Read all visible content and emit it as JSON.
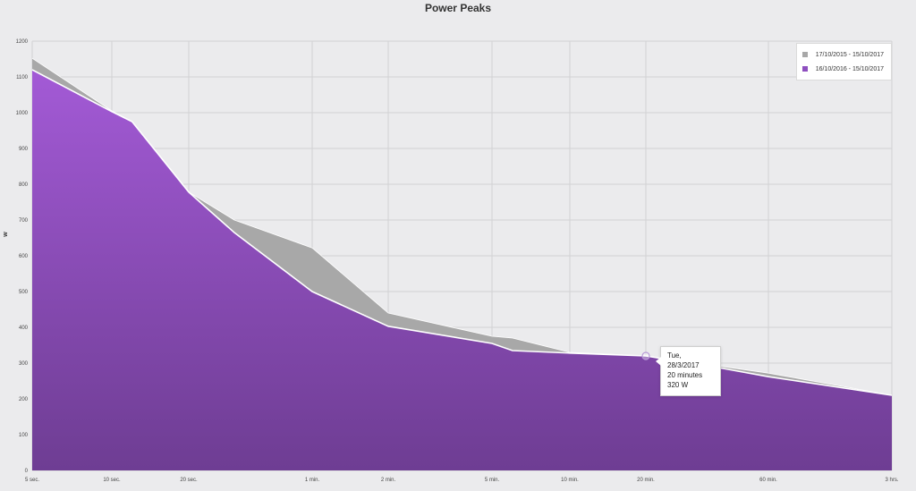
{
  "chart_data": {
    "type": "area",
    "title": "Power Peaks",
    "ylabel": "w",
    "xlabel": "",
    "ylim": [
      0,
      1200
    ],
    "y_ticks": [
      0,
      100,
      200,
      300,
      400,
      500,
      600,
      700,
      800,
      900,
      1000,
      1100,
      1200
    ],
    "x_tick_labels": [
      "5 sec.",
      "10 sec.",
      "20 sec.",
      "1 min.",
      "2 min.",
      "5 min.",
      "10 min.",
      "20 min.",
      "60 min.",
      "3 hrs."
    ],
    "x_tick_seconds": [
      5,
      10,
      20,
      60,
      120,
      300,
      600,
      1200,
      3600,
      10800
    ],
    "x_scale": "log",
    "grid": true,
    "legend_position": "top-right",
    "series": [
      {
        "name": "17/10/2015 - 15/10/2017",
        "color": "#a8a8a8",
        "x_seconds": [
          5,
          10,
          12,
          20,
          30,
          60,
          120,
          300,
          360,
          600,
          1200,
          2400,
          3600,
          10800
        ],
        "values": [
          1152,
          1005,
          975,
          778,
          700,
          622,
          440,
          375,
          370,
          330,
          320,
          290,
          272,
          210
        ]
      },
      {
        "name": "16/10/2016 - 15/10/2017",
        "color": "#8e4fbf",
        "x_seconds": [
          5,
          10,
          12,
          20,
          30,
          60,
          120,
          300,
          360,
          600,
          1200,
          2400,
          3600,
          10800
        ],
        "values": [
          1120,
          1003,
          975,
          778,
          665,
          500,
          403,
          355,
          335,
          328,
          320,
          285,
          262,
          210
        ]
      }
    ],
    "tooltip": {
      "x_seconds": 1200,
      "value": 320,
      "lines": [
        "Tue, 28/3/2017",
        "20 minutes",
        "320 W"
      ]
    }
  }
}
